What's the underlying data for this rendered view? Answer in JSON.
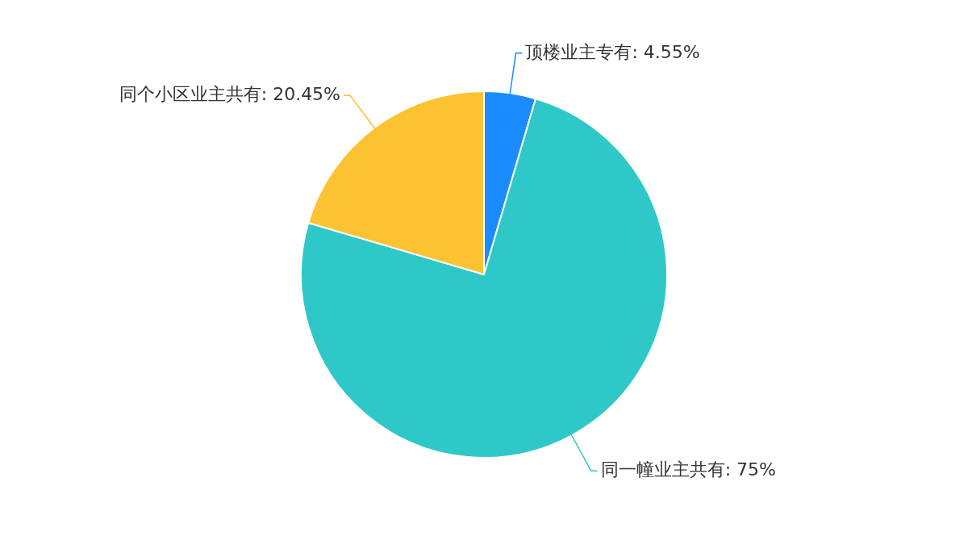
{
  "chart_data": {
    "type": "pie",
    "categories": [
      "顶楼业主专有",
      "同一幢业主共有",
      "同个小区业主共有"
    ],
    "values": [
      4.55,
      75,
      20.45
    ],
    "value_labels": [
      "4.55%",
      "75%",
      "20.45%"
    ],
    "colors": [
      "#1a8cff",
      "#2fc8c8",
      "#fcc232"
    ],
    "legend": false
  }
}
